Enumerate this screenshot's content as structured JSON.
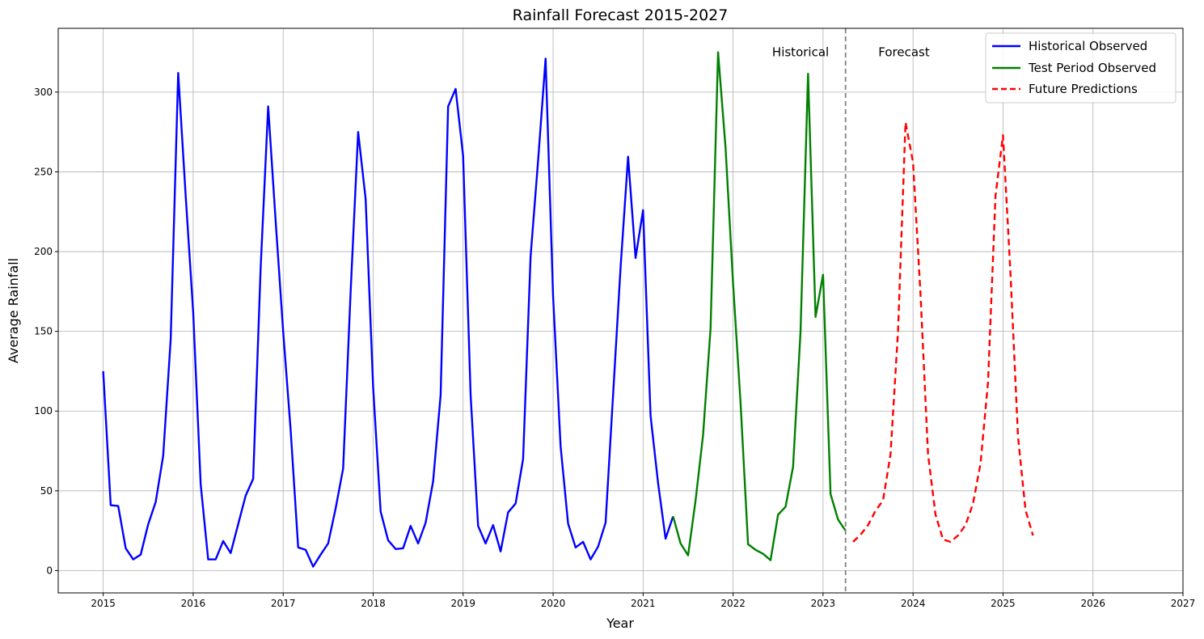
{
  "chart_data": {
    "type": "line",
    "title": "Rainfall Forecast 2015-2027",
    "xlabel": "Year",
    "ylabel": "Average Rainfall",
    "xlim": [
      2014.5,
      2027
    ],
    "ylim": [
      -14,
      340
    ],
    "x_ticks": [
      2015,
      2016,
      2017,
      2018,
      2019,
      2020,
      2021,
      2022,
      2023,
      2024,
      2025,
      2026,
      2027
    ],
    "x_tick_labels": [
      "2015",
      "2016",
      "2017",
      "2018",
      "2019",
      "2020",
      "2021",
      "2022",
      "2023",
      "2024",
      "2025",
      "2026",
      "2027"
    ],
    "y_ticks": [
      0,
      50,
      100,
      150,
      200,
      250,
      300
    ],
    "y_tick_labels": [
      "0",
      "50",
      "100",
      "150",
      "200",
      "250",
      "300"
    ],
    "grid": true,
    "legend_position": "top-right",
    "split_line": {
      "x": 2023.25,
      "color": "#808080",
      "style": "dashed"
    },
    "annotations": [
      {
        "text": "Historical",
        "x": 2022.75,
        "y": 325
      },
      {
        "text": "Forecast",
        "x": 2023.9,
        "y": 325
      }
    ],
    "series": [
      {
        "name": "Historical Observed",
        "color": "#0000ff",
        "style": "solid",
        "x_start": 2015.0,
        "x_step": 0.08333,
        "values": [
          125,
          41,
          40.5,
          14,
          7,
          10,
          29,
          43,
          72,
          145,
          312,
          235,
          162,
          54,
          7,
          7,
          18.5,
          11,
          29,
          47,
          57.5,
          190,
          291,
          219,
          150,
          88,
          14.5,
          13,
          2.5,
          10,
          17,
          39,
          64,
          175,
          275,
          233,
          115,
          37,
          19,
          13.5,
          14,
          28,
          17,
          30,
          56,
          110,
          291,
          302,
          260,
          110,
          28,
          17,
          28.5,
          12,
          36.5,
          42,
          70,
          197,
          257,
          321,
          172,
          78,
          29.5,
          14.5,
          18,
          7,
          15,
          30,
          110,
          190,
          259.5,
          196,
          226,
          97,
          55,
          20,
          34
        ]
      },
      {
        "name": "Test Period Observed",
        "color": "#008000",
        "style": "solid",
        "x_start": 2021.33333,
        "x_step": 0.08333,
        "values": [
          34,
          17,
          9.5,
          44,
          85,
          152,
          325,
          265,
          180,
          105,
          16.5,
          13,
          10.5,
          6.5,
          35,
          40,
          65,
          150,
          311.5,
          159,
          185.5,
          48,
          32,
          25
        ]
      },
      {
        "name": "Future Predictions",
        "color": "#ff0000",
        "style": "dashed",
        "x_start": 2023.33333,
        "x_step": 0.08333,
        "values": [
          18,
          22.5,
          28.5,
          37.5,
          44,
          73,
          150,
          281,
          256,
          173,
          73,
          35,
          19.5,
          18,
          22,
          28.5,
          42,
          67,
          118,
          235,
          273,
          186,
          84,
          38,
          22
        ]
      }
    ]
  }
}
